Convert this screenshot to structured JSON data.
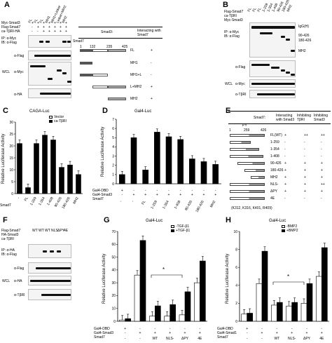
{
  "panelA": {
    "letter": "A",
    "constructs": [
      "FL",
      "FL",
      "FL",
      "MH1",
      "MH1+Linker",
      "Linker+MH2",
      "MH2"
    ],
    "row_labels": [
      "Myc-Smad3",
      "Flag-Smad7",
      "ca-TβRI-HA"
    ],
    "row_signs": [
      [
        "+",
        "+",
        "+",
        "+",
        "+",
        "+",
        "+"
      ],
      [
        "-",
        "+",
        "+",
        "+",
        "+",
        "+",
        "+"
      ],
      [
        "-",
        "-",
        "+",
        "+",
        "+",
        "+",
        "+"
      ]
    ],
    "ip_label": "IP: α-Myc",
    "ib_label": "IB: α-Flag",
    "band_label": "Smad7",
    "wcl": "WCL",
    "ab_flag": "α-Flag",
    "ab_myc": "α-Myc",
    "ab_ha": "α-HA",
    "table_header_smad3": "Smad3:",
    "table_header_interact": "Interacting with Smad7",
    "scale": [
      "1",
      "132",
      "235",
      "425"
    ],
    "rows": [
      {
        "label": "FL",
        "interact": "+"
      },
      {
        "label": "MH1",
        "interact": "-"
      },
      {
        "label": "MH1+L",
        "interact": "-"
      },
      {
        "label": "L+MH2",
        "interact": "+"
      },
      {
        "label": "MH2",
        "interact": "+"
      }
    ]
  },
  "panelB": {
    "letter": "B",
    "constructs": [
      "FL",
      "FL",
      "FL",
      "1-259",
      "1-354",
      "1-408",
      "90-426",
      "180-426",
      "MH2"
    ],
    "row_labels": [
      "Flag-Smad7",
      "ca-TβRI",
      "Myc-Smad3"
    ],
    "ip_label": "IP: α-Myc",
    "ib_label": "IB: α-Flag",
    "markers": [
      "IgG(H)",
      "90-426",
      "180-426",
      "MH2"
    ],
    "wcl": "WCL",
    "ab_flag": "α-Flag",
    "ab_myc": "α-Myc",
    "ab_tbr": "α-TβRI"
  },
  "panelC": {
    "letter": "C",
    "title": "CAGA-Luc",
    "ylabel": "Relative Luciferase Activity",
    "legend": [
      "Vector",
      "ca-TβRI"
    ],
    "xrow_label": "Smad7",
    "categories": [
      "-",
      "FL",
      "1-259",
      "1-354",
      "1-408",
      "90-426",
      "180-426",
      "MH2"
    ],
    "yticks": [
      "0",
      "5",
      "10",
      "15",
      "20",
      "25",
      "30"
    ]
  },
  "panelD": {
    "letter": "D",
    "title": "Gal4-Luc",
    "ylabel": "Relative Luciferase Activity",
    "row_labels": [
      "Gal4-DBD",
      "Gal4-Smad3",
      "Smad7"
    ],
    "row_signs": [
      [
        "+",
        "-",
        "-",
        "-",
        "-",
        "-",
        "-",
        "-",
        "-"
      ],
      [
        "-",
        "+",
        "+",
        "+",
        "+",
        "+",
        "+",
        "+",
        "+"
      ]
    ],
    "categories": [
      "-",
      "-",
      "FL",
      "1-259",
      "1-354",
      "1-408",
      "90-426",
      "180-426",
      "MH2"
    ],
    "yticks": [
      "0",
      "1",
      "2",
      "3",
      "4",
      "5",
      "6",
      "7"
    ]
  },
  "panelE": {
    "letter": "E",
    "smad7": "Smad7:",
    "headers": [
      "Interacting with Smad3",
      "Inhibiting TβRI",
      "Inhibiting Smad3"
    ],
    "scale": [
      "1",
      "259",
      "426"
    ],
    "py": "PY",
    "nls": "NLS-",
    "mut_note": "(K312, K316, K401, R409)",
    "rows": [
      {
        "label": "FL(WT)",
        "c1": "+",
        "c2": "++",
        "c3": "++"
      },
      {
        "label": "1-259",
        "c1": "-",
        "c2": "-",
        "c3": "-"
      },
      {
        "label": "1-354",
        "c1": "-",
        "c2": "-",
        "c3": "-"
      },
      {
        "label": "1-408",
        "c1": "-",
        "c2": "-",
        "c3": "-"
      },
      {
        "label": "90-426",
        "c1": "+",
        "c2": "+",
        "c3": "+"
      },
      {
        "label": "180-426",
        "c1": "+",
        "c2": "+",
        "c3": "+"
      },
      {
        "label": "MH2",
        "c1": "+",
        "c2": "+",
        "c3": "+"
      },
      {
        "label": "NLS-",
        "c1": "+",
        "c2": "+",
        "c3": "++"
      },
      {
        "label": "ΔPY",
        "c1": "+",
        "c2": "+",
        "c3": "+"
      },
      {
        "label": "4E",
        "c1": "-",
        "c2": "-",
        "c3": "-"
      }
    ]
  },
  "panelF": {
    "letter": "F",
    "constructs": [
      "WT",
      "WT",
      "WT",
      "NLS",
      "ΔPY",
      "4E"
    ],
    "row_labels": [
      "Flag-Smad7",
      "HA-Smad3",
      "ca-TβRI"
    ],
    "ip_label": "IP: α-HA",
    "ib_label": "IB: α-Flag",
    "wcl": "WCL",
    "ab_flag": "α-Flag",
    "ab_ha": "α-HA",
    "ab_tbr": "α-TβRI"
  },
  "panelG": {
    "letter": "G",
    "title": "Gal4-Luc",
    "ylabel": "Relative Luciferase Activity",
    "legend": [
      "-TGF-β1",
      "+TGF-β1"
    ],
    "row_labels": [
      "Gal4-DBD",
      "Gal4-Smad3",
      "Smad7"
    ],
    "categories": [
      "-",
      "-",
      "WT",
      "NLS-",
      "ΔPY",
      "4E"
    ],
    "star": "*",
    "yticks": [
      "0",
      "10",
      "20",
      "30",
      "40",
      "50",
      "60",
      "70"
    ]
  },
  "panelH": {
    "letter": "H",
    "title": "Gal4-Luc",
    "ylabel": "Relative Luciferase Activity",
    "legend": [
      "-BMP2",
      "+BMP2"
    ],
    "row_labels": [
      "Gal4-DBD",
      "Gal4-Smad1",
      "Smad7"
    ],
    "categories": [
      "-",
      "-",
      "WT",
      "NLS-",
      "ΔPY",
      "4E"
    ],
    "star": "*",
    "yticks": [
      "0",
      "2",
      "4",
      "6",
      "8",
      "10"
    ]
  },
  "chart_data": [
    {
      "type": "bar",
      "title": "CAGA-Luc",
      "ylabel": "Relative Luciferase Activity",
      "xlabel": "Smad7",
      "categories": [
        "-",
        "FL",
        "1-259",
        "1-354",
        "1-408",
        "90-426",
        "180-426",
        "MH2"
      ],
      "ylim": [
        0,
        30
      ],
      "series": [
        {
          "name": "Vector",
          "values": [
            1,
            null,
            null,
            null,
            null,
            null,
            null,
            null
          ]
        },
        {
          "name": "ca-TβRI",
          "values": [
            21,
            2.5,
            21,
            24.5,
            22.5,
            11,
            12,
            8
          ]
        }
      ]
    },
    {
      "type": "bar",
      "title": "Gal4-Luc",
      "ylabel": "Relative Luciferase Activity",
      "categories": [
        "-",
        "-",
        "FL",
        "1-259",
        "1-354",
        "1-408",
        "90-426",
        "180-426",
        "MH2"
      ],
      "ylim": [
        0,
        7
      ],
      "series": [
        {
          "values": [
            1,
            5,
            1.5,
            5.6,
            5.1,
            4.8,
            2.7,
            2.4,
            2.1
          ]
        }
      ]
    },
    {
      "type": "bar",
      "title": "Gal4-Luc",
      "ylabel": "Relative Luciferase Activity",
      "categories": [
        "-",
        "-",
        "WT",
        "NLS-",
        "ΔPY",
        "4E"
      ],
      "ylim": [
        0,
        70
      ],
      "series": [
        {
          "name": "-TGF-β1",
          "values": [
            1,
            36,
            4,
            4,
            5,
            30
          ]
        },
        {
          "name": "+TGF-β1",
          "values": [
            2,
            63,
            12,
            13,
            23,
            47
          ]
        }
      ]
    },
    {
      "type": "bar",
      "title": "Gal4-Luc",
      "ylabel": "Relative Luciferase Activity",
      "categories": [
        "-",
        "-",
        "WT",
        "NLS-",
        "ΔPY",
        "4E"
      ],
      "ylim": [
        0,
        10
      ],
      "series": [
        {
          "name": "-BMP2",
          "values": [
            0.8,
            4.2,
            1.8,
            1.7,
            2.0,
            5.0
          ]
        },
        {
          "name": "+BMP2",
          "values": [
            0.9,
            7.8,
            2.1,
            2.1,
            4.2,
            8.2
          ]
        }
      ]
    }
  ]
}
